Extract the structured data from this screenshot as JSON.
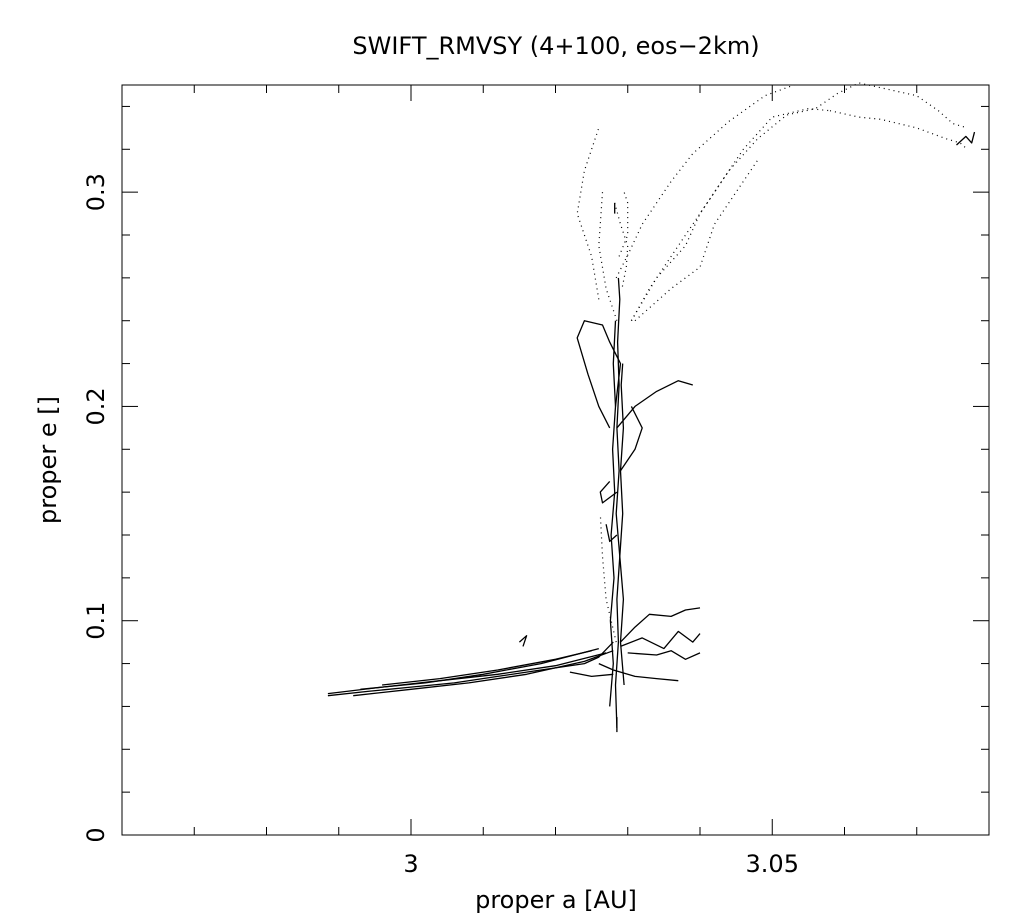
{
  "chart_data": {
    "type": "line",
    "title": "SWIFT_RMVSY (4+100, eos−2km)",
    "xlabel": "proper a [AU]",
    "ylabel": "proper e []",
    "xlim": [
      2.96,
      3.08
    ],
    "ylim": [
      0,
      0.35
    ],
    "x_ticks": [
      {
        "value": 3.0,
        "label": "3"
      },
      {
        "value": 3.05,
        "label": "3.05"
      }
    ],
    "y_ticks": [
      {
        "value": 0,
        "label": "0"
      },
      {
        "value": 0.1,
        "label": "0.1"
      },
      {
        "value": 0.2,
        "label": "0.2"
      },
      {
        "value": 0.3,
        "label": "0.3"
      }
    ],
    "x_minor_step": 0.01,
    "y_minor_step": 0.02,
    "grid": false,
    "legend": "none",
    "series": [
      {
        "style": "solid",
        "points": [
          [
            2.9885,
            0.065
          ],
          [
            2.994,
            0.067
          ],
          [
            3.0,
            0.069
          ],
          [
            3.006,
            0.071
          ],
          [
            3.012,
            0.074
          ],
          [
            3.018,
            0.077
          ],
          [
            3.024,
            0.08
          ],
          [
            3.026,
            0.083
          ],
          [
            3.028,
            0.09
          ]
        ]
      },
      {
        "style": "solid",
        "points": [
          [
            2.9885,
            0.066
          ],
          [
            2.996,
            0.069
          ],
          [
            3.004,
            0.072
          ],
          [
            3.012,
            0.075
          ],
          [
            3.02,
            0.079
          ],
          [
            3.027,
            0.085
          ]
        ]
      },
      {
        "style": "solid",
        "points": [
          [
            2.993,
            0.068
          ],
          [
            3.002,
            0.071
          ],
          [
            3.01,
            0.075
          ],
          [
            3.018,
            0.08
          ],
          [
            3.026,
            0.087
          ]
        ]
      },
      {
        "style": "solid",
        "points": [
          [
            2.992,
            0.065
          ],
          [
            3.0,
            0.068
          ],
          [
            3.008,
            0.071
          ],
          [
            3.016,
            0.075
          ],
          [
            3.024,
            0.081
          ],
          [
            3.028,
            0.086
          ]
        ]
      },
      {
        "style": "solid",
        "points": [
          [
            2.996,
            0.07
          ],
          [
            3.004,
            0.073
          ],
          [
            3.012,
            0.077
          ],
          [
            3.02,
            0.082
          ],
          [
            3.025,
            0.086
          ]
        ]
      },
      {
        "style": "solid",
        "points": [
          [
            3.015,
            0.09
          ],
          [
            3.016,
            0.093
          ],
          [
            3.0155,
            0.088
          ]
        ]
      },
      {
        "style": "solid",
        "points": [
          [
            3.0285,
            0.05
          ],
          [
            3.0283,
            0.07
          ],
          [
            3.0287,
            0.09
          ],
          [
            3.0285,
            0.11
          ],
          [
            3.0289,
            0.13
          ],
          [
            3.0284,
            0.15
          ],
          [
            3.0288,
            0.17
          ],
          [
            3.0285,
            0.19
          ],
          [
            3.0288,
            0.21
          ],
          [
            3.0286,
            0.23
          ],
          [
            3.0289,
            0.25
          ],
          [
            3.0287,
            0.26
          ]
        ]
      },
      {
        "style": "solid",
        "points": [
          [
            3.0275,
            0.06
          ],
          [
            3.028,
            0.08
          ],
          [
            3.0276,
            0.1
          ],
          [
            3.0281,
            0.12
          ],
          [
            3.0277,
            0.14
          ],
          [
            3.0282,
            0.16
          ],
          [
            3.0279,
            0.18
          ],
          [
            3.0283,
            0.2
          ],
          [
            3.028,
            0.22
          ],
          [
            3.0283,
            0.24
          ]
        ]
      },
      {
        "style": "solid",
        "points": [
          [
            3.0295,
            0.07
          ],
          [
            3.029,
            0.09
          ],
          [
            3.0294,
            0.11
          ],
          [
            3.0289,
            0.13
          ],
          [
            3.0293,
            0.15
          ],
          [
            3.029,
            0.17
          ],
          [
            3.0294,
            0.19
          ],
          [
            3.0291,
            0.21
          ],
          [
            3.0293,
            0.22
          ]
        ]
      },
      {
        "style": "solid",
        "points": [
          [
            3.0285,
            0.048
          ],
          [
            3.0285,
            0.055
          ]
        ]
      },
      {
        "style": "solid",
        "points": [
          [
            3.029,
            0.09
          ],
          [
            3.031,
            0.097
          ],
          [
            3.033,
            0.103
          ],
          [
            3.036,
            0.102
          ],
          [
            3.038,
            0.105
          ],
          [
            3.04,
            0.106
          ]
        ]
      },
      {
        "style": "solid",
        "points": [
          [
            3.029,
            0.088
          ],
          [
            3.032,
            0.092
          ],
          [
            3.035,
            0.087
          ],
          [
            3.037,
            0.095
          ],
          [
            3.039,
            0.09
          ],
          [
            3.04,
            0.094
          ]
        ]
      },
      {
        "style": "solid",
        "points": [
          [
            3.03,
            0.085
          ],
          [
            3.034,
            0.084
          ],
          [
            3.036,
            0.086
          ],
          [
            3.038,
            0.082
          ],
          [
            3.04,
            0.085
          ]
        ]
      },
      {
        "style": "solid",
        "points": [
          [
            3.026,
            0.08
          ],
          [
            3.028,
            0.077
          ],
          [
            3.031,
            0.074
          ],
          [
            3.034,
            0.073
          ],
          [
            3.037,
            0.072
          ]
        ]
      },
      {
        "style": "solid",
        "points": [
          [
            3.022,
            0.076
          ],
          [
            3.025,
            0.074
          ],
          [
            3.028,
            0.075
          ]
        ]
      },
      {
        "style": "solid",
        "points": [
          [
            3.0285,
            0.19
          ],
          [
            3.031,
            0.2
          ],
          [
            3.034,
            0.207
          ],
          [
            3.037,
            0.212
          ],
          [
            3.039,
            0.21
          ]
        ]
      },
      {
        "style": "solid",
        "points": [
          [
            3.0283,
            0.2
          ],
          [
            3.029,
            0.22
          ],
          [
            3.0275,
            0.23
          ],
          [
            3.0265,
            0.238
          ],
          [
            3.024,
            0.24
          ],
          [
            3.023,
            0.232
          ],
          [
            3.0245,
            0.215
          ],
          [
            3.026,
            0.2
          ],
          [
            3.0275,
            0.19
          ]
        ]
      },
      {
        "style": "solid",
        "points": [
          [
            3.029,
            0.17
          ],
          [
            3.031,
            0.18
          ],
          [
            3.032,
            0.19
          ],
          [
            3.0305,
            0.2
          ]
        ]
      },
      {
        "style": "solid",
        "points": [
          [
            3.0285,
            0.16
          ],
          [
            3.0265,
            0.155
          ],
          [
            3.0262,
            0.16
          ],
          [
            3.0275,
            0.165
          ]
        ]
      },
      {
        "style": "solid",
        "points": [
          [
            3.0285,
            0.14
          ],
          [
            3.0275,
            0.137
          ],
          [
            3.027,
            0.145
          ]
        ]
      },
      {
        "style": "solid",
        "points": [
          [
            3.0282,
            0.29
          ],
          [
            3.0282,
            0.295
          ]
        ]
      },
      {
        "style": "dotted",
        "points": [
          [
            3.0282,
            0.295
          ],
          [
            3.029,
            0.285
          ],
          [
            3.03,
            0.275
          ],
          [
            3.0298,
            0.265
          ],
          [
            3.0292,
            0.255
          ]
        ]
      },
      {
        "style": "dotted",
        "points": [
          [
            3.0284,
            0.26
          ],
          [
            3.0302,
            0.272
          ],
          [
            3.032,
            0.285
          ],
          [
            3.036,
            0.305
          ],
          [
            3.039,
            0.318
          ],
          [
            3.044,
            0.333
          ],
          [
            3.049,
            0.345
          ],
          [
            3.053,
            0.35
          ]
        ]
      },
      {
        "style": "dotted",
        "points": [
          [
            3.0305,
            0.24
          ],
          [
            3.033,
            0.255
          ],
          [
            3.036,
            0.27
          ],
          [
            3.04,
            0.29
          ],
          [
            3.044,
            0.31
          ],
          [
            3.048,
            0.325
          ],
          [
            3.052,
            0.336
          ],
          [
            3.056,
            0.339
          ],
          [
            3.059,
            0.346
          ],
          [
            3.062,
            0.351
          ],
          [
            3.066,
            0.348
          ],
          [
            3.07,
            0.345
          ],
          [
            3.073,
            0.338
          ],
          [
            3.075,
            0.332
          ],
          [
            3.077,
            0.33
          ]
        ]
      },
      {
        "style": "dotted",
        "points": [
          [
            3.0305,
            0.24
          ],
          [
            3.034,
            0.26
          ],
          [
            3.038,
            0.275
          ],
          [
            3.04,
            0.29
          ],
          [
            3.043,
            0.305
          ],
          [
            3.046,
            0.32
          ],
          [
            3.05,
            0.335
          ],
          [
            3.055,
            0.339
          ],
          [
            3.058,
            0.338
          ]
        ]
      },
      {
        "style": "dotted",
        "points": [
          [
            3.031,
            0.24
          ],
          [
            3.036,
            0.255
          ],
          [
            3.04,
            0.265
          ],
          [
            3.042,
            0.285
          ],
          [
            3.045,
            0.3
          ],
          [
            3.048,
            0.315
          ]
        ]
      },
      {
        "style": "dotted",
        "points": [
          [
            3.026,
            0.25
          ],
          [
            3.025,
            0.27
          ],
          [
            3.023,
            0.29
          ],
          [
            3.024,
            0.31
          ],
          [
            3.026,
            0.33
          ]
        ]
      },
      {
        "style": "dotted",
        "points": [
          [
            3.0285,
            0.24
          ],
          [
            3.027,
            0.255
          ],
          [
            3.026,
            0.275
          ],
          [
            3.0265,
            0.3
          ]
        ]
      },
      {
        "style": "dotted",
        "points": [
          [
            3.0288,
            0.27
          ],
          [
            3.03,
            0.28
          ],
          [
            3.03,
            0.295
          ],
          [
            3.0295,
            0.3
          ]
        ]
      },
      {
        "style": "dotted",
        "points": [
          [
            3.0284,
            0.09
          ],
          [
            3.027,
            0.11
          ],
          [
            3.0265,
            0.13
          ],
          [
            3.0262,
            0.15
          ]
        ]
      },
      {
        "style": "dotted",
        "points": [
          [
            3.058,
            0.338
          ],
          [
            3.062,
            0.335
          ],
          [
            3.065,
            0.334
          ],
          [
            3.07,
            0.33
          ],
          [
            3.074,
            0.325
          ],
          [
            3.076,
            0.323
          ],
          [
            3.077,
            0.32
          ]
        ]
      },
      {
        "style": "solid",
        "points": [
          [
            3.0755,
            0.322
          ],
          [
            3.0768,
            0.326
          ],
          [
            3.0776,
            0.323
          ],
          [
            3.078,
            0.328
          ]
        ]
      }
    ]
  }
}
